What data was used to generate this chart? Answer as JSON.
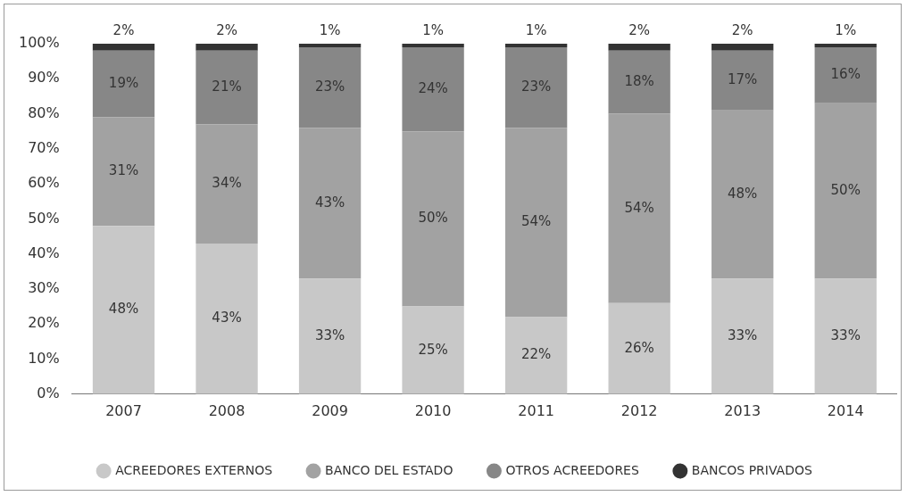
{
  "chart_data": {
    "type": "bar",
    "stacked": true,
    "categories": [
      "2007",
      "2008",
      "2009",
      "2010",
      "2011",
      "2012",
      "2013",
      "2014"
    ],
    "series": [
      {
        "name": "ACREEDORES EXTERNOS",
        "color": "#c8c8c8",
        "values": [
          48,
          43,
          33,
          25,
          22,
          26,
          33,
          33
        ],
        "value_labels": [
          "48%",
          "43%",
          "33%",
          "25%",
          "22%",
          "26%",
          "33%",
          "33%"
        ]
      },
      {
        "name": "BANCO DEL ESTADO",
        "color": "#a2a2a2",
        "values": [
          31,
          34,
          43,
          50,
          54,
          54,
          48,
          50
        ],
        "value_labels": [
          "31%",
          "34%",
          "43%",
          "50%",
          "54%",
          "54%",
          "48%",
          "50%"
        ]
      },
      {
        "name": "OTROS ACREEDORES",
        "color": "#878787",
        "values": [
          19,
          21,
          23,
          24,
          23,
          18,
          17,
          16
        ],
        "value_labels": [
          "19%",
          "21%",
          "23%",
          "24%",
          "23%",
          "18%",
          "17%",
          "16%"
        ]
      },
      {
        "name": "BANCOS PRIVADOS",
        "color": "#333333",
        "values": [
          2,
          2,
          1,
          1,
          1,
          2,
          2,
          1
        ],
        "value_labels": [
          "2%",
          "2%",
          "1%",
          "1%",
          "1%",
          "2%",
          "2%",
          "1%"
        ]
      }
    ],
    "ylim": [
      0,
      100
    ],
    "yticks": [
      {
        "value": 0,
        "label": "0%"
      },
      {
        "value": 10,
        "label": "10%"
      },
      {
        "value": 20,
        "label": "20%"
      },
      {
        "value": 30,
        "label": "30%"
      },
      {
        "value": 40,
        "label": "40%"
      },
      {
        "value": 50,
        "label": "50%"
      },
      {
        "value": 60,
        "label": "60%"
      },
      {
        "value": 70,
        "label": "70%"
      },
      {
        "value": 80,
        "label": "80%"
      },
      {
        "value": 90,
        "label": "90%"
      },
      {
        "value": 100,
        "label": "100%"
      }
    ],
    "grid": false,
    "legend": "bottom"
  }
}
